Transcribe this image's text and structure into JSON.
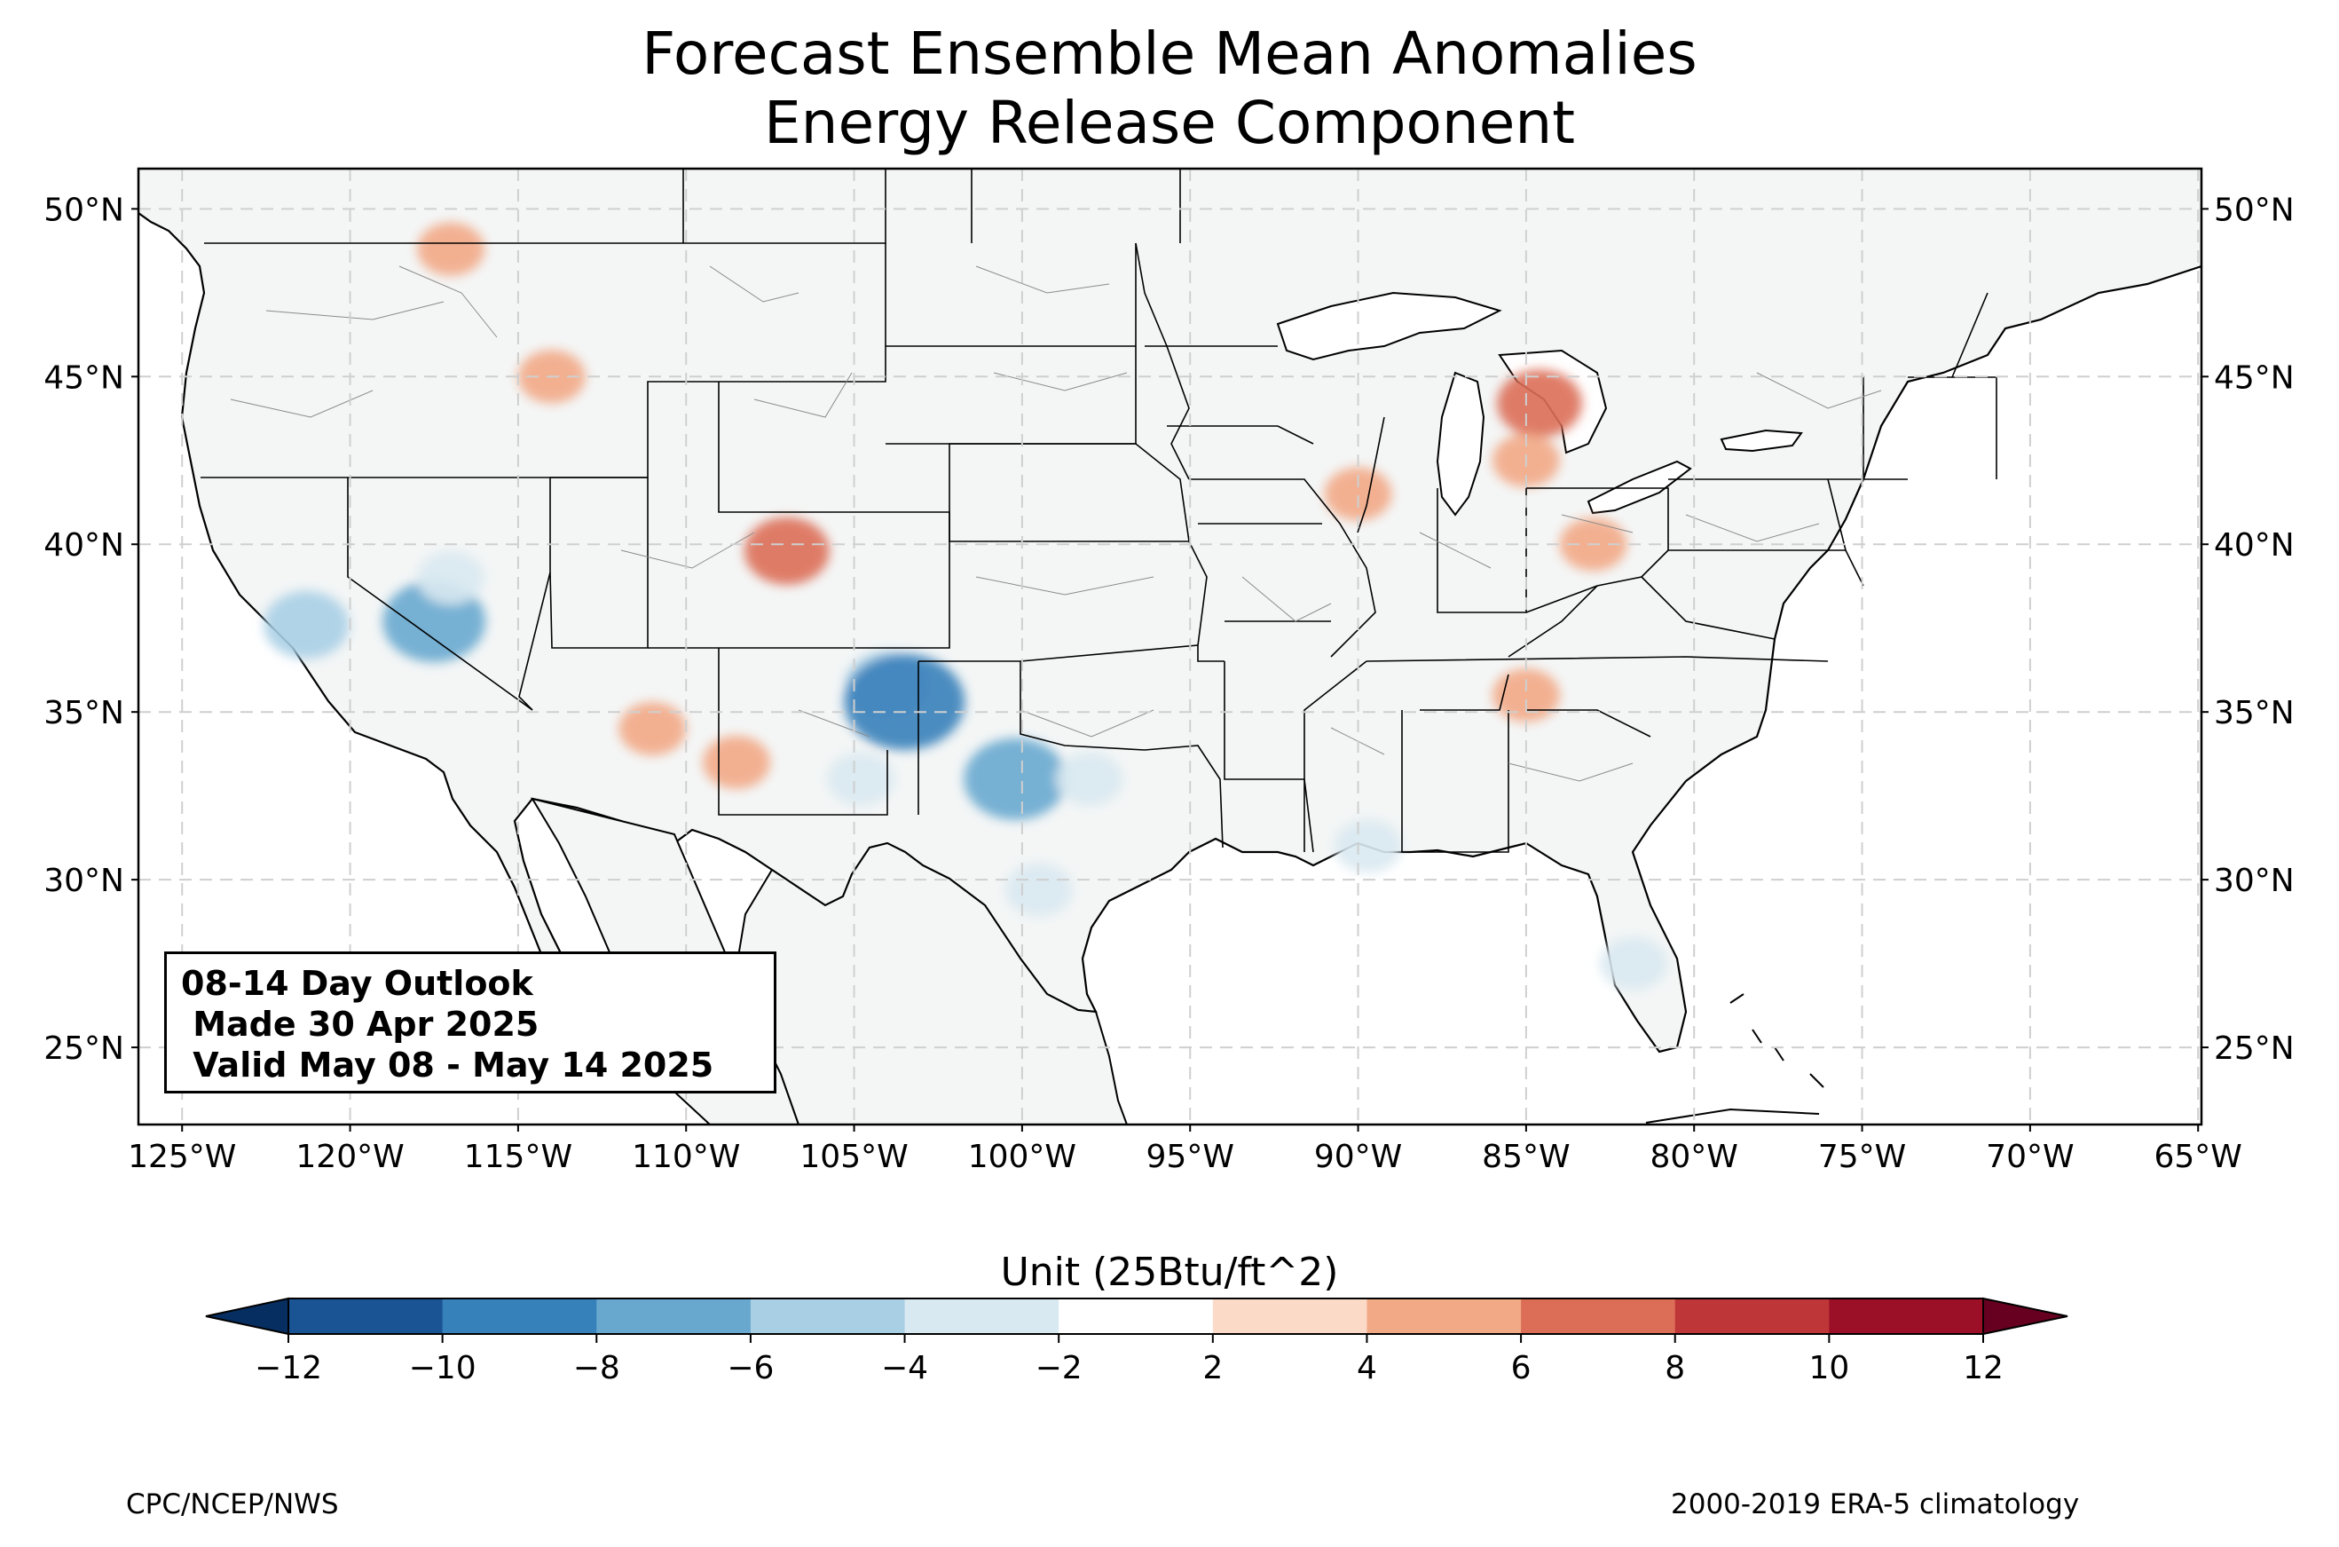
{
  "title": {
    "line1": "Forecast Ensemble Mean Anomalies",
    "line2": "Energy Release Component"
  },
  "map": {
    "lon_range": [
      -126.3,
      -64.9
    ],
    "lat_range": [
      22.7,
      51.2
    ],
    "lat_ticks": [
      {
        "value": 50,
        "label": "50°N"
      },
      {
        "value": 45,
        "label": "45°N"
      },
      {
        "value": 40,
        "label": "40°N"
      },
      {
        "value": 35,
        "label": "35°N"
      },
      {
        "value": 30,
        "label": "30°N"
      },
      {
        "value": 25,
        "label": "25°N"
      }
    ],
    "lon_ticks": [
      {
        "value": -125,
        "label": "125°W"
      },
      {
        "value": -120,
        "label": "120°W"
      },
      {
        "value": -115,
        "label": "115°W"
      },
      {
        "value": -110,
        "label": "110°W"
      },
      {
        "value": -105,
        "label": "105°W"
      },
      {
        "value": -100,
        "label": "100°W"
      },
      {
        "value": -95,
        "label": "95°W"
      },
      {
        "value": -90,
        "label": "90°W"
      },
      {
        "value": -85,
        "label": "85°W"
      },
      {
        "value": -80,
        "label": "80°W"
      },
      {
        "value": -75,
        "label": "75°W"
      },
      {
        "value": -70,
        "label": "70°W"
      },
      {
        "value": -65,
        "label": "65°W"
      }
    ],
    "land_color": "#f4f6f6",
    "gridlines": "dashed",
    "anomaly_patches": [
      {
        "lon": -121.3,
        "lat": 37.6,
        "value": -6
      },
      {
        "lon": -117.5,
        "lat": 37.7,
        "value": -8
      },
      {
        "lon": -117.0,
        "lat": 39.0,
        "value": -4
      },
      {
        "lon": -104.0,
        "lat": 35.8,
        "value": -6
      },
      {
        "lon": -103.5,
        "lat": 35.3,
        "value": -10
      },
      {
        "lon": -104.8,
        "lat": 33.0,
        "value": -4
      },
      {
        "lon": -100.2,
        "lat": 33.0,
        "value": -8
      },
      {
        "lon": -98.0,
        "lat": 33.0,
        "value": -4
      },
      {
        "lon": -99.5,
        "lat": 29.7,
        "value": -4
      },
      {
        "lon": -89.7,
        "lat": 31.0,
        "value": -4
      },
      {
        "lon": -81.8,
        "lat": 27.5,
        "value": -4
      },
      {
        "lon": -107.0,
        "lat": 39.8,
        "value": 6
      },
      {
        "lon": -108.5,
        "lat": 33.5,
        "value": 4
      },
      {
        "lon": -111.0,
        "lat": 34.5,
        "value": 4
      },
      {
        "lon": -114.0,
        "lat": 45.0,
        "value": 4
      },
      {
        "lon": -84.6,
        "lat": 44.2,
        "value": 6
      },
      {
        "lon": -85.0,
        "lat": 42.5,
        "value": 4
      },
      {
        "lon": -90.0,
        "lat": 41.5,
        "value": 4
      },
      {
        "lon": -83.0,
        "lat": 40.0,
        "value": 4
      },
      {
        "lon": -85.0,
        "lat": 35.5,
        "value": 4
      },
      {
        "lon": -117.0,
        "lat": 48.8,
        "value": 4
      }
    ]
  },
  "info_box": {
    "line1": "08-14 Day Outlook",
    "line2": " Made 30 Apr 2025",
    "line3": " Valid May 08 - May 14 2025"
  },
  "colorbar": {
    "label": "Unit (25Btu/ft^2)",
    "boundaries": [
      -12,
      -10,
      -8,
      -6,
      -4,
      -2,
      2,
      4,
      6,
      8,
      10,
      12
    ],
    "tick_labels": [
      "−12",
      "−10",
      "−8",
      "−6",
      "−4",
      "−2",
      "2",
      "4",
      "6",
      "8",
      "10",
      "12"
    ],
    "colors": [
      "#1a5494",
      "#3781ba",
      "#68a8cf",
      "#a9cfe5",
      "#d9e9f1",
      "#ffffff",
      "#fbdac8",
      "#f2a986",
      "#dc6e57",
      "#bf3639",
      "#9b0f27"
    ],
    "under_color": "#062e60",
    "over_color": "#670020"
  },
  "footer": {
    "left": "CPC/NCEP/NWS",
    "right": "2000-2019 ERA-5 climatology"
  }
}
